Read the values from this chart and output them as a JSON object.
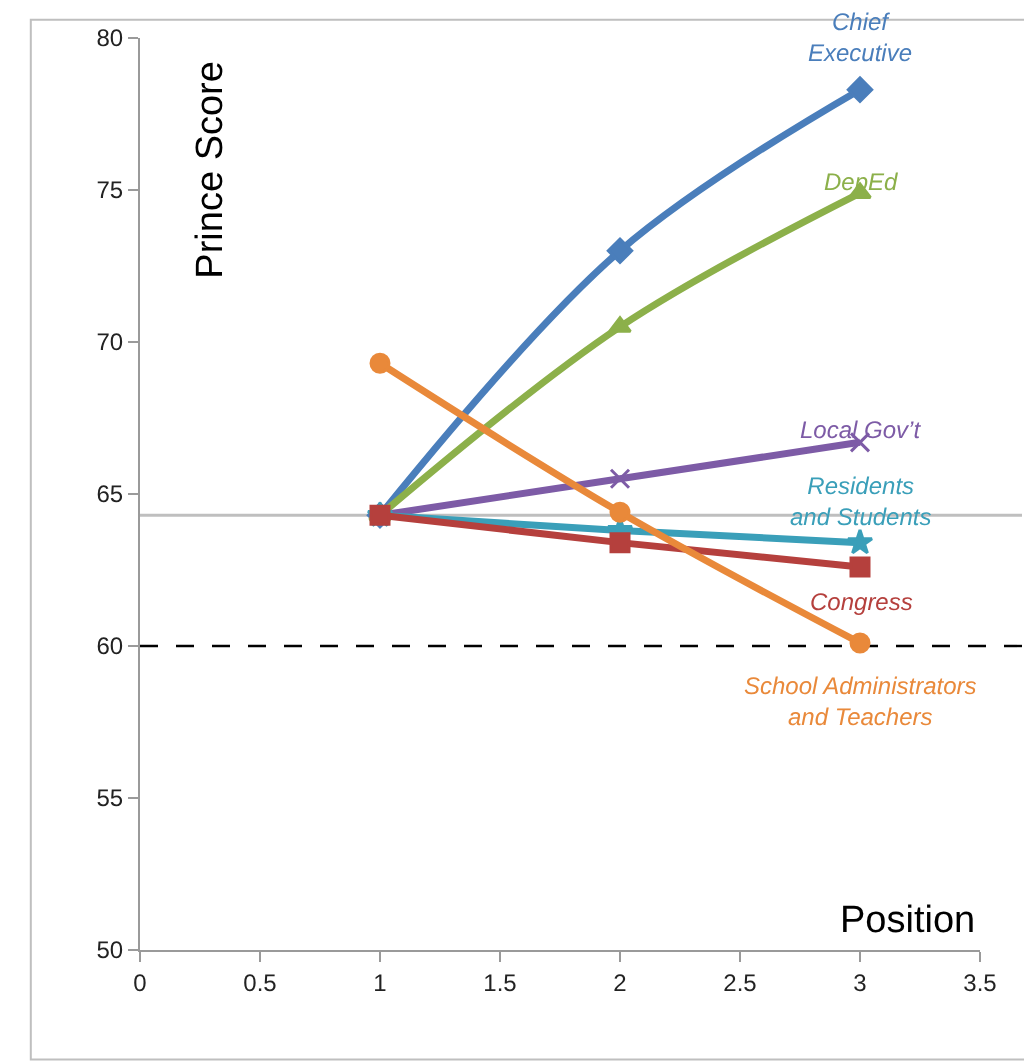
{
  "chart_data": {
    "type": "line",
    "xlabel": "Position",
    "ylabel": "Prince Score",
    "x": [
      1,
      2,
      3
    ],
    "series": [
      {
        "name": "Chief Executive",
        "color": "#4a7ebb",
        "marker": "diamond",
        "values": [
          64.3,
          73.0,
          78.3
        ]
      },
      {
        "name": "DepEd",
        "color": "#8cb04a",
        "marker": "triangle",
        "values": [
          64.3,
          70.5,
          74.9
        ]
      },
      {
        "name": "Local Gov’t",
        "color": "#7d5ba6",
        "marker": "cross",
        "values": [
          64.3,
          65.5,
          66.7
        ]
      },
      {
        "name": "Residents and Students",
        "color": "#3a9fb9",
        "marker": "star",
        "values": [
          64.3,
          63.8,
          63.4
        ]
      },
      {
        "name": "Congress",
        "color": "#b5403d",
        "marker": "square",
        "values": [
          64.3,
          63.4,
          62.6
        ]
      },
      {
        "name": "School Administrators and Teachers",
        "color": "#e9893a",
        "marker": "circle",
        "values": [
          69.3,
          64.4,
          60.1
        ]
      }
    ],
    "xlim": [
      0,
      3.5
    ],
    "xticks": [
      0,
      0.5,
      1,
      1.5,
      2,
      2.5,
      3,
      3.5
    ],
    "ylim": [
      50,
      80
    ],
    "yticks": [
      50,
      55,
      60,
      65,
      70,
      75,
      80
    ],
    "ref_lines": [
      {
        "axis": "y",
        "value": 64.3,
        "color": "#bfbfbf",
        "line_style": "solid"
      },
      {
        "axis": "y",
        "value": 60,
        "color": "#000000",
        "line_style": "dashed"
      }
    ],
    "grid": false,
    "legend": false,
    "line_style": "solid"
  }
}
